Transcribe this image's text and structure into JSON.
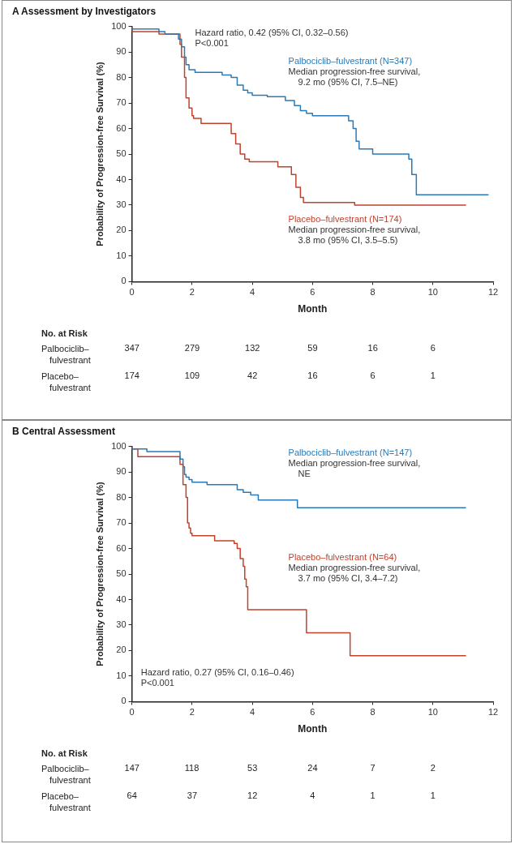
{
  "chart_data": [
    {
      "type": "step",
      "title": "A  Assessment by Investigators",
      "xlabel": "Month",
      "ylabel": "Probability of Progression-free Survival (%)",
      "xlim": [
        0,
        12
      ],
      "xticks": [
        0,
        2,
        4,
        6,
        8,
        10,
        12
      ],
      "ylim": [
        0,
        100
      ],
      "yticks": [
        0,
        10,
        20,
        30,
        40,
        50,
        60,
        70,
        80,
        90,
        100
      ],
      "grid": false,
      "legend": false,
      "series": [
        {
          "name": "Palbociclib–fulvestrant (N=347)",
          "color": "#2a7ab8",
          "x": [
            0,
            0.9,
            1.1,
            1.55,
            1.65,
            1.75,
            1.8,
            1.9,
            2.1,
            3.0,
            3.3,
            3.5,
            3.7,
            3.85,
            4.0,
            4.5,
            5.1,
            5.4,
            5.6,
            5.8,
            6.0,
            7.2,
            7.35,
            7.45,
            7.55,
            8.0,
            9.2,
            9.3,
            9.45,
            11.05,
            11.85
          ],
          "values": [
            100,
            99,
            98,
            97,
            95,
            92,
            88,
            85,
            83,
            82,
            81,
            80,
            77,
            75,
            74,
            73,
            72.5,
            71,
            69,
            67,
            66,
            65,
            63,
            60,
            55,
            52,
            50,
            48,
            42,
            34,
            34
          ]
        },
        {
          "name": "Placebo–fulvestrant (N=174)",
          "color": "#c1422c",
          "x": [
            0,
            0.9,
            1.6,
            1.65,
            1.75,
            1.8,
            1.9,
            2.0,
            2.05,
            2.3,
            3.3,
            3.45,
            3.6,
            3.75,
            3.9,
            4.85,
            5.3,
            5.45,
            5.6,
            5.7,
            7.4,
            7.5,
            11.1
          ],
          "values": [
            100,
            98,
            97,
            93,
            88,
            80,
            72,
            68,
            65,
            64,
            62,
            58,
            54,
            50,
            48,
            47,
            45,
            42,
            37,
            33,
            31,
            30,
            30
          ]
        }
      ],
      "annotations": [
        "Hazard ratio, 0.42 (95% CI, 0.32–0.56)",
        "P<0.001",
        "Median progression-free survival,",
        "9.2 mo (95% CI, 7.5–NE)",
        "Median progression-free survival,",
        "3.8 mo (95% CI, 3.5–5.5)",
        "No. at Risk",
        "Palbociclib–fulvestrant",
        "347",
        "279",
        "132",
        "59",
        "16",
        "6",
        "Placebo–fulvestrant",
        "174",
        "109",
        "42",
        "16",
        "6",
        "1"
      ]
    },
    {
      "type": "step",
      "title": "B  Central Assessment",
      "xlabel": "Month",
      "ylabel": "Probability of Progression-free Survival (%)",
      "xlim": [
        0,
        12
      ],
      "xticks": [
        0,
        2,
        4,
        6,
        8,
        10,
        12
      ],
      "ylim": [
        0,
        100
      ],
      "yticks": [
        0,
        10,
        20,
        30,
        40,
        50,
        60,
        70,
        80,
        90,
        100
      ],
      "grid": false,
      "legend": false,
      "series": [
        {
          "name": "Palbociclib–fulvestrant (N=147)",
          "color": "#2a7ab8",
          "x": [
            0,
            0.5,
            1.6,
            1.7,
            1.75,
            1.8,
            1.9,
            2.0,
            2.5,
            3.5,
            3.7,
            3.95,
            4.2,
            5.5,
            5.55,
            11.1
          ],
          "values": [
            100,
            99,
            98,
            95,
            92,
            89,
            88,
            87,
            86,
            85,
            83,
            82,
            81,
            79,
            76,
            76
          ]
        },
        {
          "name": "Placebo–fulvestrant (N=64)",
          "color": "#c1422c",
          "x": [
            0,
            0.2,
            1.6,
            1.7,
            1.8,
            1.85,
            1.9,
            1.95,
            2.0,
            2.75,
            3.4,
            3.5,
            3.6,
            3.7,
            3.75,
            3.8,
            3.85,
            5.8,
            7.25,
            7.35,
            11.1
          ],
          "values": [
            100,
            99,
            96,
            93,
            85,
            80,
            70,
            68,
            66,
            65,
            63,
            62,
            60,
            56,
            53,
            48,
            45,
            36,
            27,
            18,
            18
          ]
        }
      ],
      "annotations": [
        "Hazard ratio, 0.27 (95% CI, 0.16–0.46)",
        "P<0.001",
        "Median progression-free survival,",
        "NE",
        "Median progression-free survival,",
        "3.7 mo (95% CI, 3.4–7.2)",
        "No. at Risk",
        "Palbociclib–fulvestrant",
        "147",
        "118",
        "53",
        "24",
        "7",
        "2",
        "Placebo–fulvestrant",
        "64",
        "37",
        "12",
        "4",
        "1",
        "1"
      ]
    }
  ]
}
